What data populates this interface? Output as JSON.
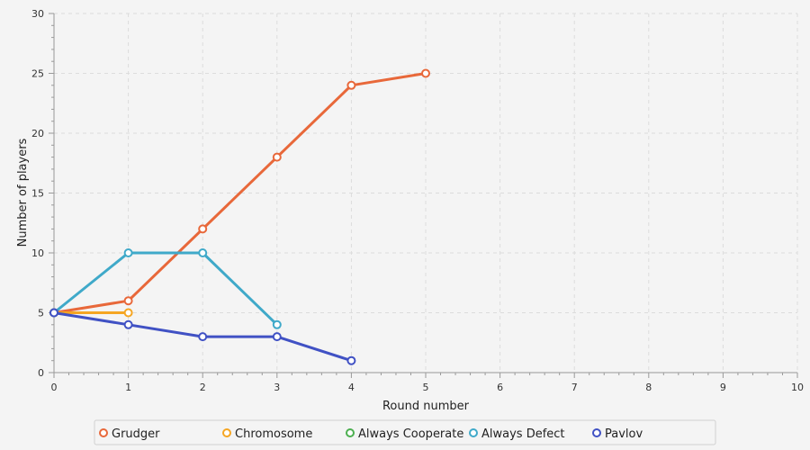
{
  "chart_data": {
    "type": "line",
    "title": "",
    "xlabel": "Round number",
    "ylabel": "Number of players",
    "xlim": [
      0,
      10
    ],
    "ylim": [
      0,
      30
    ],
    "x_ticks": [
      0,
      1,
      2,
      3,
      4,
      5,
      6,
      7,
      8,
      9,
      10
    ],
    "y_ticks": [
      0,
      5,
      10,
      15,
      20,
      25,
      30
    ],
    "grid": true,
    "legend_position": "bottom",
    "series": [
      {
        "name": "Grudger",
        "color": "#e8683a",
        "x": [
          0,
          1,
          2,
          3,
          4,
          5
        ],
        "values": [
          5,
          6,
          12,
          18,
          24,
          25
        ]
      },
      {
        "name": "Chromosome",
        "color": "#f5a623",
        "x": [
          0,
          1
        ],
        "values": [
          5,
          5
        ]
      },
      {
        "name": "Always Cooperate",
        "color": "#4caf50",
        "x": [],
        "values": []
      },
      {
        "name": "Always Defect",
        "color": "#3fa9c9",
        "x": [
          0,
          1,
          2,
          3
        ],
        "values": [
          5,
          10,
          10,
          4
        ]
      },
      {
        "name": "Pavlov",
        "color": "#4051c4",
        "x": [
          0,
          1,
          2,
          3,
          4
        ],
        "values": [
          5,
          4,
          3,
          3,
          1
        ]
      }
    ]
  }
}
